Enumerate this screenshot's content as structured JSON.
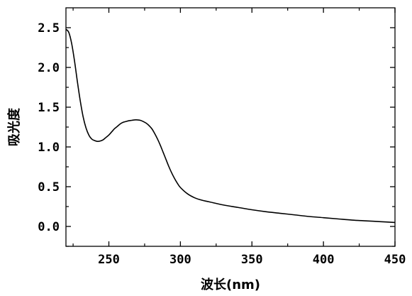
{
  "chart_data": {
    "type": "line",
    "xlabel": "波长(nm)",
    "ylabel": "吸光度",
    "xlim": [
      220,
      450
    ],
    "ylim": [
      -0.25,
      2.75
    ],
    "x_ticks": [
      250,
      300,
      350,
      400,
      450
    ],
    "x_tick_labels": [
      "250",
      "300",
      "350",
      "400",
      "450"
    ],
    "y_ticks": [
      0.0,
      0.5,
      1.0,
      1.5,
      2.0,
      2.5
    ],
    "y_tick_labels": [
      "0.0",
      "0.5",
      "1.0",
      "1.5",
      "2.0",
      "2.5"
    ],
    "grid": false,
    "series": [
      {
        "x": [
          220,
          222,
          224,
          226,
          228,
          230,
          232,
          234,
          236,
          238,
          240,
          242,
          244,
          246,
          248,
          250,
          252,
          254,
          256,
          258,
          260,
          262,
          264,
          266,
          268,
          270,
          272,
          274,
          276,
          278,
          280,
          282,
          284,
          286,
          288,
          290,
          292,
          294,
          296,
          298,
          300,
          305,
          310,
          315,
          320,
          330,
          340,
          350,
          360,
          370,
          380,
          390,
          400,
          410,
          420,
          430,
          440,
          450
        ],
        "y": [
          2.48,
          2.44,
          2.3,
          2.08,
          1.82,
          1.58,
          1.38,
          1.24,
          1.15,
          1.1,
          1.08,
          1.07,
          1.075,
          1.09,
          1.12,
          1.15,
          1.19,
          1.23,
          1.26,
          1.29,
          1.31,
          1.32,
          1.33,
          1.335,
          1.34,
          1.34,
          1.335,
          1.32,
          1.3,
          1.27,
          1.23,
          1.17,
          1.1,
          1.02,
          0.93,
          0.84,
          0.75,
          0.67,
          0.6,
          0.54,
          0.49,
          0.41,
          0.36,
          0.33,
          0.31,
          0.27,
          0.24,
          0.21,
          0.185,
          0.165,
          0.145,
          0.125,
          0.11,
          0.095,
          0.08,
          0.07,
          0.06,
          0.05
        ],
        "color": "#000000"
      }
    ]
  }
}
